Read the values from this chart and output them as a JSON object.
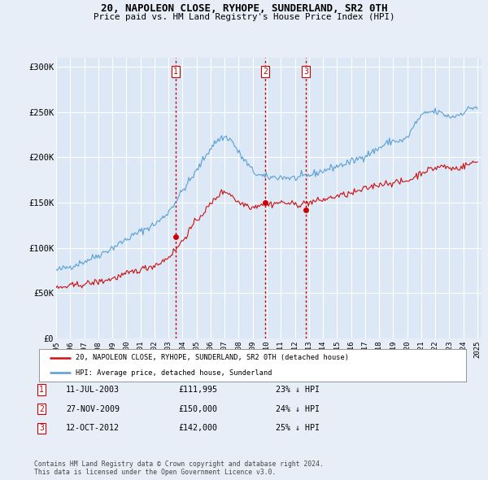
{
  "title": "20, NAPOLEON CLOSE, RYHOPE, SUNDERLAND, SR2 0TH",
  "subtitle": "Price paid vs. HM Land Registry's House Price Index (HPI)",
  "ylabel_ticks": [
    "£0",
    "£50K",
    "£100K",
    "£150K",
    "£200K",
    "£250K",
    "£300K"
  ],
  "ytick_vals": [
    0,
    50000,
    100000,
    150000,
    200000,
    250000,
    300000
  ],
  "ylim": [
    0,
    310000
  ],
  "background_color": "#e8eef8",
  "plot_bg": "#dce8f5",
  "hpi_color": "#5a9fd4",
  "price_color": "#cc1111",
  "vline_color": "#cc0000",
  "legend_label_price": "20, NAPOLEON CLOSE, RYHOPE, SUNDERLAND, SR2 0TH (detached house)",
  "legend_label_hpi": "HPI: Average price, detached house, Sunderland",
  "table_rows": [
    {
      "num": "1",
      "date": "11-JUL-2003",
      "price": "£111,995",
      "pct": "23% ↓ HPI"
    },
    {
      "num": "2",
      "date": "27-NOV-2009",
      "price": "£150,000",
      "pct": "24% ↓ HPI"
    },
    {
      "num": "3",
      "date": "12-OCT-2012",
      "price": "£142,000",
      "pct": "25% ↓ HPI"
    }
  ],
  "footer": "Contains HM Land Registry data © Crown copyright and database right 2024.\nThis data is licensed under the Open Government Licence v3.0.",
  "sale_dates": [
    2003.53,
    2009.9,
    2012.79
  ],
  "sale_prices": [
    111995,
    150000,
    142000
  ],
  "xtick_years": [
    1995,
    1996,
    1997,
    1998,
    1999,
    2000,
    2001,
    2002,
    2003,
    2004,
    2005,
    2006,
    2007,
    2008,
    2009,
    2010,
    2011,
    2012,
    2013,
    2014,
    2015,
    2016,
    2017,
    2018,
    2019,
    2020,
    2021,
    2022,
    2023,
    2024,
    2025
  ]
}
